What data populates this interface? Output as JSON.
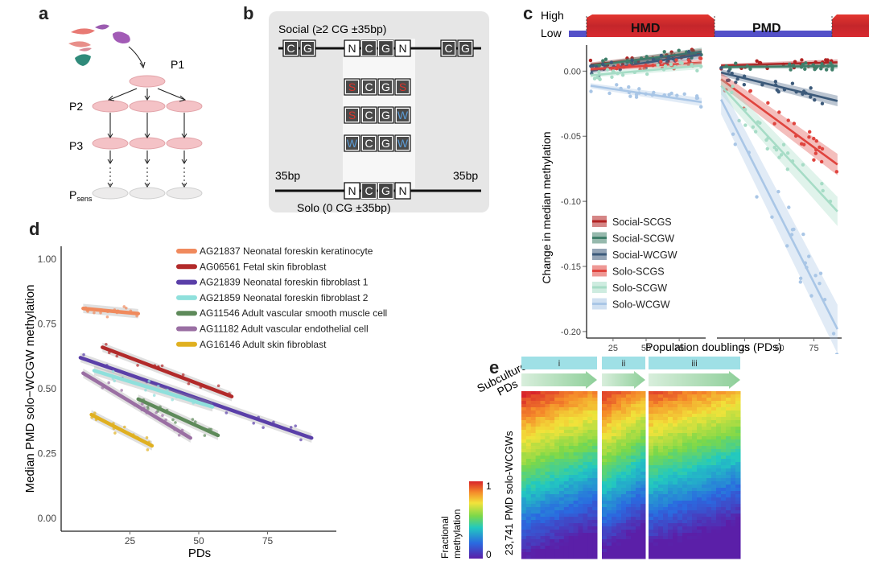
{
  "panels": {
    "a": {
      "letter": "a",
      "passages": [
        "P1",
        "P2",
        "P3",
        "Psens"
      ],
      "psens_main": "P",
      "psens_sub": "sens"
    },
    "b": {
      "letter": "b",
      "social_label": "Social (≥2 CG ±35bp)",
      "solo_label": "Solo (0 CG ±35bp)",
      "flank_left": "35bp",
      "flank_right": "35bp",
      "context_top": [
        "N",
        "C",
        "G",
        "N"
      ],
      "flank_cg": [
        "C",
        "G"
      ],
      "contexts": [
        {
          "name": "SCGS",
          "letters": [
            "S",
            "C",
            "G",
            "S"
          ],
          "colors": [
            "#d9342b",
            "#ffffff",
            "#ffffff",
            "#d9342b"
          ]
        },
        {
          "name": "SCGW",
          "letters": [
            "S",
            "C",
            "G",
            "W"
          ],
          "colors": [
            "#d9342b",
            "#ffffff",
            "#ffffff",
            "#5b9bd5"
          ]
        },
        {
          "name": "WCGW",
          "letters": [
            "W",
            "C",
            "G",
            "W"
          ],
          "colors": [
            "#5b9bd5",
            "#ffffff",
            "#ffffff",
            "#5b9bd5"
          ]
        }
      ],
      "context_bottom": [
        "N",
        "C",
        "G",
        "N"
      ]
    },
    "c": {
      "letter": "c",
      "legend_high": "High",
      "legend_low": "Low",
      "domain_hmd": "HMD",
      "domain_pmd": "PMD"
    },
    "d": {
      "letter": "d"
    },
    "e": {
      "letter": "e",
      "subculture_label": "Subculture",
      "pds_label": "PDs",
      "subcultures": [
        "i",
        "ii",
        "iii"
      ],
      "y_label": "23,741 PMD solo-WCGWs",
      "colorbar_title": "Fractional\nmethylation",
      "colorbar_title_lines": [
        "Fractional",
        "methylation"
      ],
      "colorbar_max": "1",
      "colorbar_min": "0"
    }
  },
  "chart_data": [
    {
      "id": "c",
      "type": "scatter",
      "title": "",
      "xlabel": "Population doublings (PDs)",
      "ylabel": "Change in median methylation",
      "facets": [
        "HMD",
        "PMD"
      ],
      "xlim": [
        5,
        95
      ],
      "ylim": [
        -0.205,
        0.02
      ],
      "x_ticks": [
        25,
        50,
        75
      ],
      "y_ticks": [
        0.0,
        -0.05,
        -0.1,
        -0.15,
        -0.2
      ],
      "y_tick_labels": [
        "0.00",
        "-0.05",
        "-0.10",
        "-0.15",
        "-0.20"
      ],
      "legend_position": "bottom-right-inside",
      "series": [
        {
          "name": "Social-SCGS",
          "color": "#b22222",
          "hmd": {
            "intercept": 0.004,
            "slope": 0.00011
          },
          "pmd": {
            "intercept": 0.004,
            "slope": 3e-05
          }
        },
        {
          "name": "Social-SCGW",
          "color": "#3f7f6a",
          "hmd": {
            "intercept": 0.003,
            "slope": 0.00013
          },
          "pmd": {
            "intercept": 0.003,
            "slope": 1e-05
          }
        },
        {
          "name": "Social-WCGW",
          "color": "#3c5a7a",
          "hmd": {
            "intercept": -0.001,
            "slope": 0.00015
          },
          "pmd": {
            "intercept": 0.001,
            "slope": -0.00026
          }
        },
        {
          "name": "Solo-SCGS",
          "color": "#e0443e",
          "hmd": {
            "intercept": 0.001,
            "slope": 6e-05
          },
          "pmd": {
            "intercept": 0.0,
            "slope": -0.00078
          }
        },
        {
          "name": "Solo-SCGW",
          "color": "#a6dcc6",
          "hmd": {
            "intercept": -0.004,
            "slope": 9e-05
          },
          "pmd": {
            "intercept": -0.002,
            "slope": -0.00115
          }
        },
        {
          "name": "Solo-WCGW",
          "color": "#a9c6e6",
          "hmd": {
            "intercept": -0.01,
            "slope": -0.00015
          },
          "pmd": {
            "intercept": -0.005,
            "slope": -0.0021
          }
        }
      ]
    },
    {
      "id": "d",
      "type": "scatter",
      "title": "",
      "xlabel": "PDs",
      "ylabel": "Median PMD solo−WCGW methylation",
      "xlim": [
        0,
        100
      ],
      "ylim": [
        -0.05,
        1.05
      ],
      "x_ticks": [
        25,
        50,
        75
      ],
      "y_ticks": [
        0.0,
        0.25,
        0.5,
        0.75,
        1.0
      ],
      "y_tick_labels": [
        "0.00",
        "0.25",
        "0.50",
        "0.75",
        "1.00"
      ],
      "legend_position": "top-right-inside",
      "series": [
        {
          "name": "AG21837 Neonatal foreskin keratinocyte",
          "color": "#f08a5d",
          "x_range": [
            8,
            28
          ],
          "y_range": [
            0.81,
            0.79
          ]
        },
        {
          "name": "AG06561 Fetal skin fibroblast",
          "color": "#b22a2a",
          "x_range": [
            15,
            62
          ],
          "y_range": [
            0.66,
            0.47
          ]
        },
        {
          "name": "AG21839 Neonatal foreskin fibroblast 1",
          "color": "#5a3fa8",
          "x_range": [
            7,
            91
          ],
          "y_range": [
            0.62,
            0.31
          ]
        },
        {
          "name": "AG21859 Neonatal foreskin fibroblast 2",
          "color": "#8fe0dc",
          "x_range": [
            12,
            55
          ],
          "y_range": [
            0.57,
            0.43
          ]
        },
        {
          "name": "AG11546 Adult vascular smooth muscle cell",
          "color": "#5e8a5a",
          "x_range": [
            28,
            57
          ],
          "y_range": [
            0.46,
            0.32
          ]
        },
        {
          "name": "AG11182 Adult vascular endothelial cell",
          "color": "#9a6fa3",
          "x_range": [
            8,
            47
          ],
          "y_range": [
            0.56,
            0.31
          ]
        },
        {
          "name": "AG16146 Adult skin fibroblast",
          "color": "#e0b020",
          "x_range": [
            11,
            33
          ],
          "y_range": [
            0.4,
            0.28
          ]
        }
      ]
    },
    {
      "id": "e",
      "type": "heatmap",
      "title": "",
      "xlabel": "PDs",
      "ylabel": "23,741 PMD solo-WCGWs",
      "column_groups": [
        "i",
        "ii",
        "iii"
      ],
      "colorbar": {
        "label": "Fractional methylation",
        "range": [
          0,
          1
        ],
        "ticks": [
          "0",
          "1"
        ]
      },
      "description": "Rows sorted by methylation from high (top, red) to low (bottom, purple); methylation decreases left-to-right within each subculture"
    }
  ]
}
